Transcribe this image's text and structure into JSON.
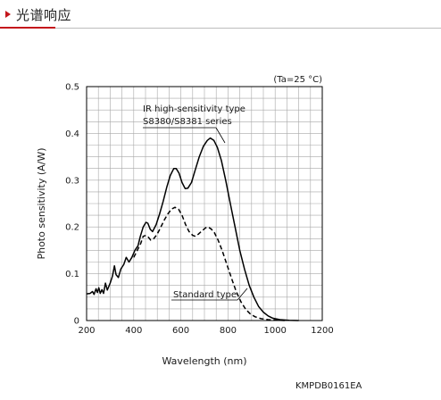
{
  "header": {
    "title": "光谱响应"
  },
  "chart_data": {
    "type": "line",
    "xlabel": "Wavelength (nm)",
    "ylabel": "Photo sensitivity (A/W)",
    "xlim": [
      200,
      1200
    ],
    "ylim": [
      0,
      0.5
    ],
    "x_ticks": [
      "200",
      "400",
      "600",
      "800",
      "1000",
      "1200"
    ],
    "y_ticks": [
      "0",
      "0.1",
      "0.2",
      "0.3",
      "0.4",
      "0.5"
    ],
    "condition_note": "(Ta=25 °C)",
    "grid": true,
    "series": [
      {
        "name": "IR high-sensitivity type S8380/S8381 series",
        "label_lines": [
          "IR high-sensitivity type",
          "S8380/S8381 series"
        ],
        "style": "solid",
        "points": [
          [
            200,
            0.057
          ],
          [
            215,
            0.058
          ],
          [
            225,
            0.062
          ],
          [
            232,
            0.056
          ],
          [
            240,
            0.068
          ],
          [
            246,
            0.06
          ],
          [
            252,
            0.07
          ],
          [
            258,
            0.058
          ],
          [
            265,
            0.066
          ],
          [
            272,
            0.058
          ],
          [
            280,
            0.08
          ],
          [
            288,
            0.065
          ],
          [
            300,
            0.08
          ],
          [
            310,
            0.095
          ],
          [
            318,
            0.117
          ],
          [
            325,
            0.098
          ],
          [
            335,
            0.092
          ],
          [
            345,
            0.11
          ],
          [
            358,
            0.12
          ],
          [
            368,
            0.135
          ],
          [
            380,
            0.125
          ],
          [
            392,
            0.135
          ],
          [
            405,
            0.15
          ],
          [
            418,
            0.16
          ],
          [
            428,
            0.18
          ],
          [
            440,
            0.2
          ],
          [
            452,
            0.21
          ],
          [
            460,
            0.208
          ],
          [
            470,
            0.195
          ],
          [
            480,
            0.19
          ],
          [
            495,
            0.205
          ],
          [
            510,
            0.228
          ],
          [
            525,
            0.255
          ],
          [
            540,
            0.285
          ],
          [
            555,
            0.31
          ],
          [
            570,
            0.325
          ],
          [
            580,
            0.325
          ],
          [
            592,
            0.315
          ],
          [
            605,
            0.295
          ],
          [
            618,
            0.282
          ],
          [
            630,
            0.283
          ],
          [
            645,
            0.295
          ],
          [
            660,
            0.32
          ],
          [
            678,
            0.35
          ],
          [
            695,
            0.372
          ],
          [
            712,
            0.385
          ],
          [
            725,
            0.39
          ],
          [
            740,
            0.385
          ],
          [
            755,
            0.37
          ],
          [
            772,
            0.342
          ],
          [
            790,
            0.3
          ],
          [
            810,
            0.25
          ],
          [
            830,
            0.2
          ],
          [
            850,
            0.15
          ],
          [
            870,
            0.11
          ],
          [
            890,
            0.075
          ],
          [
            910,
            0.05
          ],
          [
            930,
            0.03
          ],
          [
            950,
            0.018
          ],
          [
            970,
            0.01
          ],
          [
            990,
            0.005
          ],
          [
            1020,
            0.002
          ],
          [
            1060,
            0.0005
          ],
          [
            1100,
            0.0
          ]
        ]
      },
      {
        "name": "Standard type",
        "label_lines": [
          "Standard type"
        ],
        "style": "dashed",
        "points": [
          [
            400,
            0.135
          ],
          [
            415,
            0.15
          ],
          [
            430,
            0.165
          ],
          [
            440,
            0.18
          ],
          [
            452,
            0.182
          ],
          [
            462,
            0.178
          ],
          [
            472,
            0.172
          ],
          [
            485,
            0.175
          ],
          [
            500,
            0.185
          ],
          [
            515,
            0.2
          ],
          [
            530,
            0.215
          ],
          [
            545,
            0.228
          ],
          [
            560,
            0.238
          ],
          [
            575,
            0.242
          ],
          [
            590,
            0.238
          ],
          [
            605,
            0.225
          ],
          [
            620,
            0.205
          ],
          [
            635,
            0.19
          ],
          [
            650,
            0.182
          ],
          [
            662,
            0.18
          ],
          [
            675,
            0.185
          ],
          [
            690,
            0.192
          ],
          [
            705,
            0.198
          ],
          [
            715,
            0.2
          ],
          [
            728,
            0.196
          ],
          [
            742,
            0.188
          ],
          [
            758,
            0.172
          ],
          [
            775,
            0.15
          ],
          [
            795,
            0.12
          ],
          [
            815,
            0.09
          ],
          [
            835,
            0.062
          ],
          [
            855,
            0.04
          ],
          [
            875,
            0.024
          ],
          [
            895,
            0.014
          ],
          [
            915,
            0.008
          ],
          [
            940,
            0.004
          ],
          [
            970,
            0.002
          ],
          [
            1000,
            0.001
          ],
          [
            1040,
            0.0
          ]
        ]
      }
    ]
  },
  "figure_code": "KMPDB0161EA"
}
